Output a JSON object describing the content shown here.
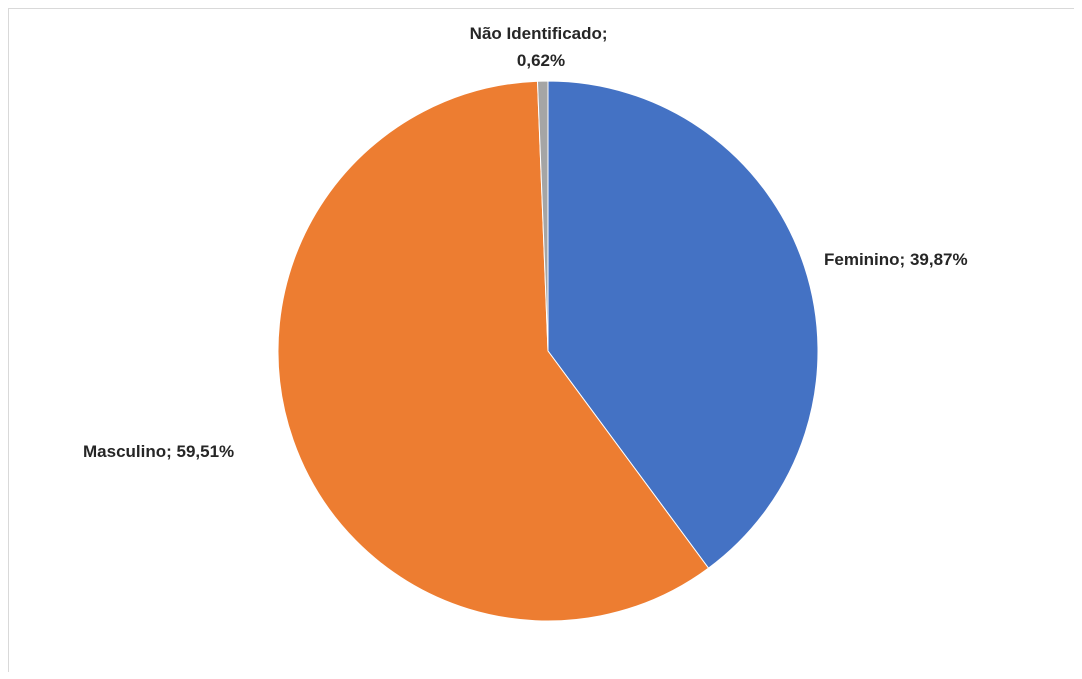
{
  "chart_data": {
    "type": "pie",
    "title": "",
    "start_angle_deg": 0,
    "direction": "clockwise",
    "slices": [
      {
        "name": "Feminino",
        "value": 39.87,
        "label": "Feminino; 39,87%",
        "color": "#4472C4"
      },
      {
        "name": "Masculino",
        "value": 59.51,
        "label": "Masculino; 59,51%",
        "color": "#ED7D31"
      },
      {
        "name": "Não Identificado",
        "value": 0.62,
        "label": "Não Identificado; 0,62%",
        "label_lines": [
          "Não Identificado;",
          "0,62%"
        ],
        "color": "#A5A5A5"
      }
    ],
    "legend": "none",
    "data_labels": "outside"
  }
}
